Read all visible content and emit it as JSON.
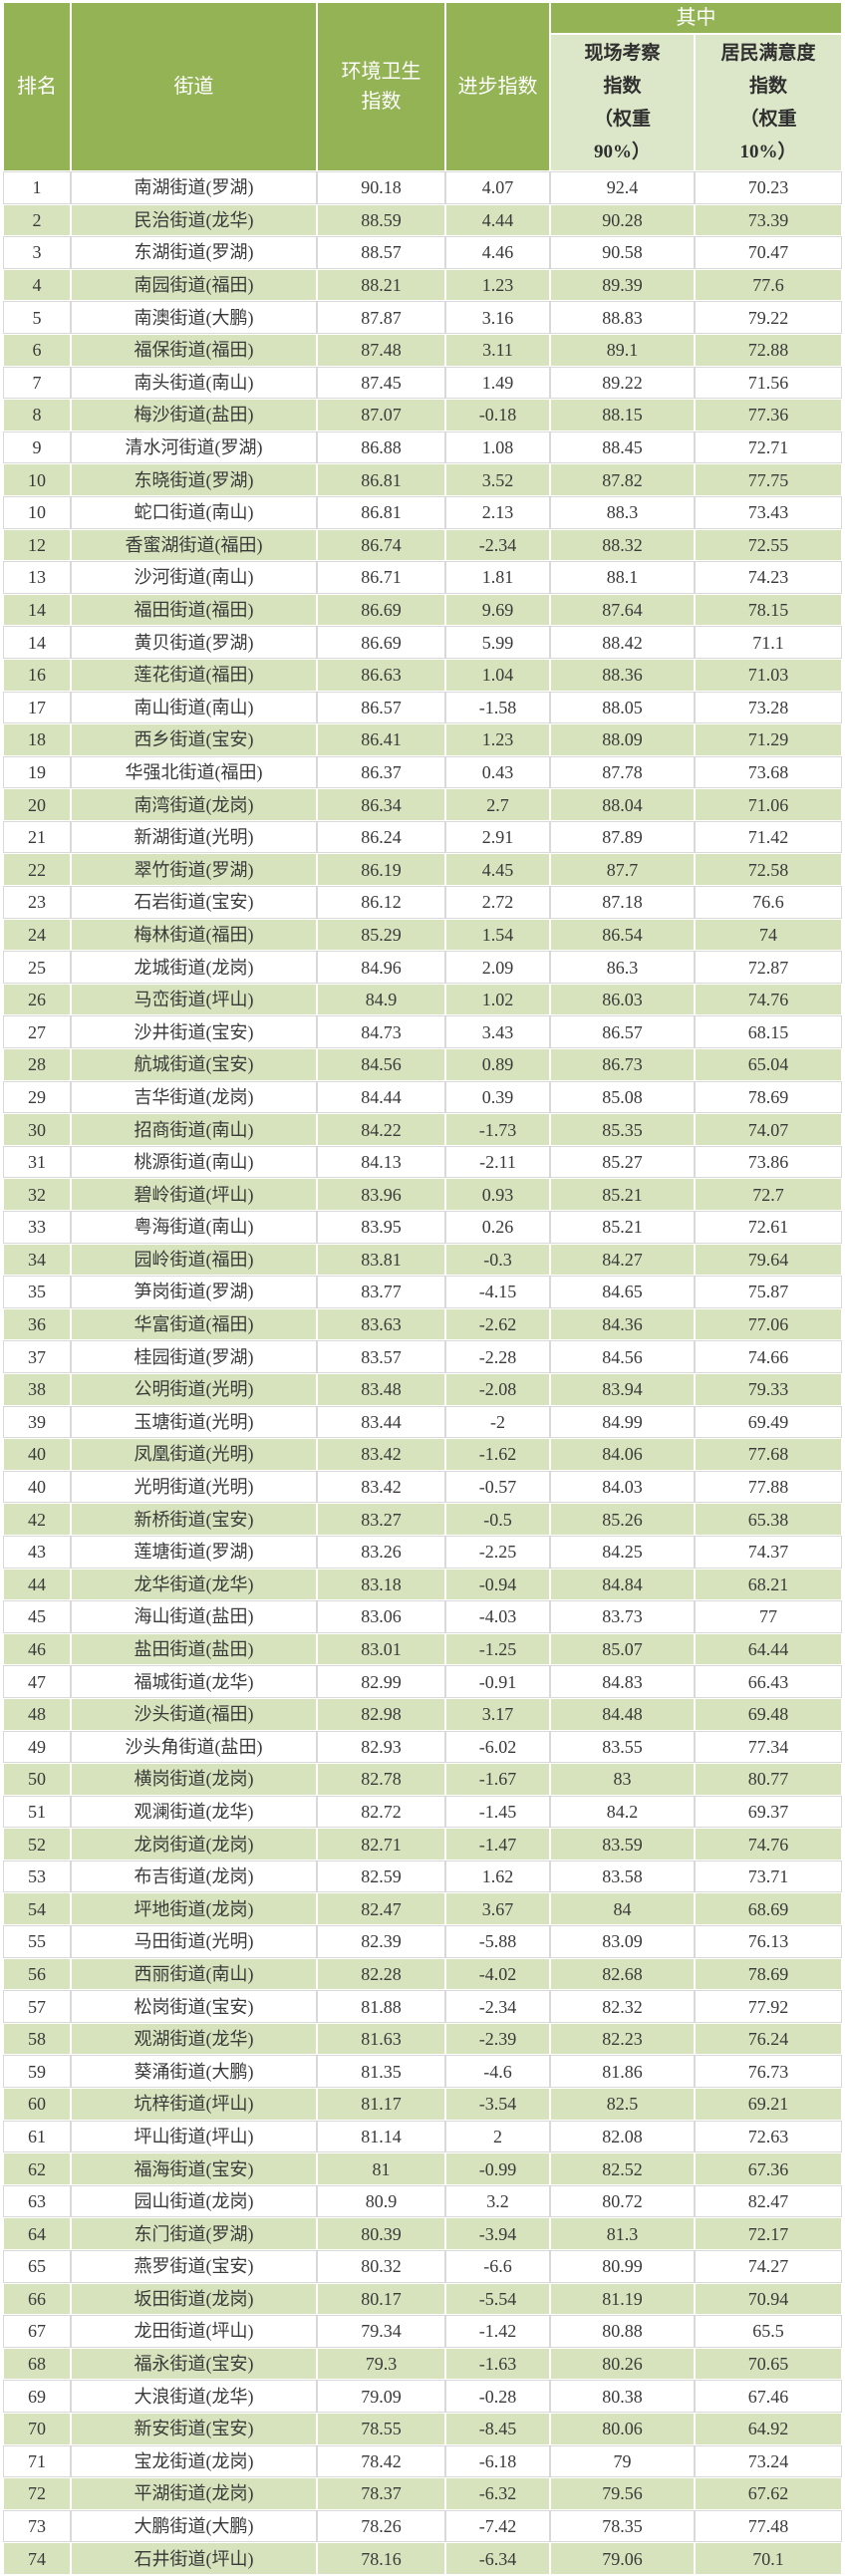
{
  "colors": {
    "header_green": "#94b355",
    "stripe_green": "#d6e3bc",
    "subheader_bg": "#dce7c9",
    "header_text": "#ffffff",
    "body_text": "#3a3a3a"
  },
  "header_display": {
    "rank": "排名",
    "street": "街道",
    "env": "环境卫生\n指数",
    "progress": "进步指数",
    "among": "其中",
    "onsite": "现场考察\n指数\n（权重\n90%）",
    "satisfaction": "居民满意度\n指数\n（权重\n10%）"
  },
  "chart_data": {
    "type": "table",
    "title": "",
    "columns": [
      "排名",
      "街道",
      "环境卫生指数",
      "进步指数",
      "其中：现场考察指数（权重90%）",
      "其中：居民满意度指数（权重10%）"
    ],
    "merged_header": {
      "label": "其中",
      "spans": [
        "现场考察指数（权重90%）",
        "居民满意度指数（权重10%）"
      ]
    },
    "rows": [
      [
        "1",
        "南湖街道(罗湖)",
        "90.18",
        "4.07",
        "92.4",
        "70.23"
      ],
      [
        "2",
        "民治街道(龙华)",
        "88.59",
        "4.44",
        "90.28",
        "73.39"
      ],
      [
        "3",
        "东湖街道(罗湖)",
        "88.57",
        "4.46",
        "90.58",
        "70.47"
      ],
      [
        "4",
        "南园街道(福田)",
        "88.21",
        "1.23",
        "89.39",
        "77.6"
      ],
      [
        "5",
        "南澳街道(大鹏)",
        "87.87",
        "3.16",
        "88.83",
        "79.22"
      ],
      [
        "6",
        "福保街道(福田)",
        "87.48",
        "3.11",
        "89.1",
        "72.88"
      ],
      [
        "7",
        "南头街道(南山)",
        "87.45",
        "1.49",
        "89.22",
        "71.56"
      ],
      [
        "8",
        "梅沙街道(盐田)",
        "87.07",
        "-0.18",
        "88.15",
        "77.36"
      ],
      [
        "9",
        "清水河街道(罗湖)",
        "86.88",
        "1.08",
        "88.45",
        "72.71"
      ],
      [
        "10",
        "东晓街道(罗湖)",
        "86.81",
        "3.52",
        "87.82",
        "77.75"
      ],
      [
        "10",
        "蛇口街道(南山)",
        "86.81",
        "2.13",
        "88.3",
        "73.43"
      ],
      [
        "12",
        "香蜜湖街道(福田)",
        "86.74",
        "-2.34",
        "88.32",
        "72.55"
      ],
      [
        "13",
        "沙河街道(南山)",
        "86.71",
        "1.81",
        "88.1",
        "74.23"
      ],
      [
        "14",
        "福田街道(福田)",
        "86.69",
        "9.69",
        "87.64",
        "78.15"
      ],
      [
        "14",
        "黄贝街道(罗湖)",
        "86.69",
        "5.99",
        "88.42",
        "71.1"
      ],
      [
        "16",
        "莲花街道(福田)",
        "86.63",
        "1.04",
        "88.36",
        "71.03"
      ],
      [
        "17",
        "南山街道(南山)",
        "86.57",
        "-1.58",
        "88.05",
        "73.28"
      ],
      [
        "18",
        "西乡街道(宝安)",
        "86.41",
        "1.23",
        "88.09",
        "71.29"
      ],
      [
        "19",
        "华强北街道(福田)",
        "86.37",
        "0.43",
        "87.78",
        "73.68"
      ],
      [
        "20",
        "南湾街道(龙岗)",
        "86.34",
        "2.7",
        "88.04",
        "71.06"
      ],
      [
        "21",
        "新湖街道(光明)",
        "86.24",
        "2.91",
        "87.89",
        "71.42"
      ],
      [
        "22",
        "翠竹街道(罗湖)",
        "86.19",
        "4.45",
        "87.7",
        "72.58"
      ],
      [
        "23",
        "石岩街道(宝安)",
        "86.12",
        "2.72",
        "87.18",
        "76.6"
      ],
      [
        "24",
        "梅林街道(福田)",
        "85.29",
        "1.54",
        "86.54",
        "74"
      ],
      [
        "25",
        "龙城街道(龙岗)",
        "84.96",
        "2.09",
        "86.3",
        "72.87"
      ],
      [
        "26",
        "马峦街道(坪山)",
        "84.9",
        "1.02",
        "86.03",
        "74.76"
      ],
      [
        "27",
        "沙井街道(宝安)",
        "84.73",
        "3.43",
        "86.57",
        "68.15"
      ],
      [
        "28",
        "航城街道(宝安)",
        "84.56",
        "0.89",
        "86.73",
        "65.04"
      ],
      [
        "29",
        "吉华街道(龙岗)",
        "84.44",
        "0.39",
        "85.08",
        "78.69"
      ],
      [
        "30",
        "招商街道(南山)",
        "84.22",
        "-1.73",
        "85.35",
        "74.07"
      ],
      [
        "31",
        "桃源街道(南山)",
        "84.13",
        "-2.11",
        "85.27",
        "73.86"
      ],
      [
        "32",
        "碧岭街道(坪山)",
        "83.96",
        "0.93",
        "85.21",
        "72.7"
      ],
      [
        "33",
        "粤海街道(南山)",
        "83.95",
        "0.26",
        "85.21",
        "72.61"
      ],
      [
        "34",
        "园岭街道(福田)",
        "83.81",
        "-0.3",
        "84.27",
        "79.64"
      ],
      [
        "35",
        "笋岗街道(罗湖)",
        "83.77",
        "-4.15",
        "84.65",
        "75.87"
      ],
      [
        "36",
        "华富街道(福田)",
        "83.63",
        "-2.62",
        "84.36",
        "77.06"
      ],
      [
        "37",
        "桂园街道(罗湖)",
        "83.57",
        "-2.28",
        "84.56",
        "74.66"
      ],
      [
        "38",
        "公明街道(光明)",
        "83.48",
        "-2.08",
        "83.94",
        "79.33"
      ],
      [
        "39",
        "玉塘街道(光明)",
        "83.44",
        "-2",
        "84.99",
        "69.49"
      ],
      [
        "40",
        "凤凰街道(光明)",
        "83.42",
        "-1.62",
        "84.06",
        "77.68"
      ],
      [
        "40",
        "光明街道(光明)",
        "83.42",
        "-0.57",
        "84.03",
        "77.88"
      ],
      [
        "42",
        "新桥街道(宝安)",
        "83.27",
        "-0.5",
        "85.26",
        "65.38"
      ],
      [
        "43",
        "莲塘街道(罗湖)",
        "83.26",
        "-2.25",
        "84.25",
        "74.37"
      ],
      [
        "44",
        "龙华街道(龙华)",
        "83.18",
        "-0.94",
        "84.84",
        "68.21"
      ],
      [
        "45",
        "海山街道(盐田)",
        "83.06",
        "-4.03",
        "83.73",
        "77"
      ],
      [
        "46",
        "盐田街道(盐田)",
        "83.01",
        "-1.25",
        "85.07",
        "64.44"
      ],
      [
        "47",
        "福城街道(龙华)",
        "82.99",
        "-0.91",
        "84.83",
        "66.43"
      ],
      [
        "48",
        "沙头街道(福田)",
        "82.98",
        "3.17",
        "84.48",
        "69.48"
      ],
      [
        "49",
        "沙头角街道(盐田)",
        "82.93",
        "-6.02",
        "83.55",
        "77.34"
      ],
      [
        "50",
        "横岗街道(龙岗)",
        "82.78",
        "-1.67",
        "83",
        "80.77"
      ],
      [
        "51",
        "观澜街道(龙华)",
        "82.72",
        "-1.45",
        "84.2",
        "69.37"
      ],
      [
        "52",
        "龙岗街道(龙岗)",
        "82.71",
        "-1.47",
        "83.59",
        "74.76"
      ],
      [
        "53",
        "布吉街道(龙岗)",
        "82.59",
        "1.62",
        "83.58",
        "73.71"
      ],
      [
        "54",
        "坪地街道(龙岗)",
        "82.47",
        "3.67",
        "84",
        "68.69"
      ],
      [
        "55",
        "马田街道(光明)",
        "82.39",
        "-5.88",
        "83.09",
        "76.13"
      ],
      [
        "56",
        "西丽街道(南山)",
        "82.28",
        "-4.02",
        "82.68",
        "78.69"
      ],
      [
        "57",
        "松岗街道(宝安)",
        "81.88",
        "-2.34",
        "82.32",
        "77.92"
      ],
      [
        "58",
        "观湖街道(龙华)",
        "81.63",
        "-2.39",
        "82.23",
        "76.24"
      ],
      [
        "59",
        "葵涌街道(大鹏)",
        "81.35",
        "-4.6",
        "81.86",
        "76.73"
      ],
      [
        "60",
        "坑梓街道(坪山)",
        "81.17",
        "-3.54",
        "82.5",
        "69.21"
      ],
      [
        "61",
        "坪山街道(坪山)",
        "81.14",
        "2",
        "82.08",
        "72.63"
      ],
      [
        "62",
        "福海街道(宝安)",
        "81",
        "-0.99",
        "82.52",
        "67.36"
      ],
      [
        "63",
        "园山街道(龙岗)",
        "80.9",
        "3.2",
        "80.72",
        "82.47"
      ],
      [
        "64",
        "东门街道(罗湖)",
        "80.39",
        "-3.94",
        "81.3",
        "72.17"
      ],
      [
        "65",
        "燕罗街道(宝安)",
        "80.32",
        "-6.6",
        "80.99",
        "74.27"
      ],
      [
        "66",
        "坂田街道(龙岗)",
        "80.17",
        "-5.54",
        "81.19",
        "70.94"
      ],
      [
        "67",
        "龙田街道(坪山)",
        "79.34",
        "-1.42",
        "80.88",
        "65.5"
      ],
      [
        "68",
        "福永街道(宝安)",
        "79.3",
        "-1.63",
        "80.26",
        "70.65"
      ],
      [
        "69",
        "大浪街道(龙华)",
        "79.09",
        "-0.28",
        "80.38",
        "67.46"
      ],
      [
        "70",
        "新安街道(宝安)",
        "78.55",
        "-8.45",
        "80.06",
        "64.92"
      ],
      [
        "71",
        "宝龙街道(龙岗)",
        "78.42",
        "-6.18",
        "79",
        "73.24"
      ],
      [
        "72",
        "平湖街道(龙岗)",
        "78.37",
        "-6.32",
        "79.56",
        "67.62"
      ],
      [
        "73",
        "大鹏街道(大鹏)",
        "78.26",
        "-7.42",
        "78.35",
        "77.48"
      ],
      [
        "74",
        "石井街道(坪山)",
        "78.16",
        "-6.34",
        "79.06",
        "70.1"
      ]
    ]
  }
}
